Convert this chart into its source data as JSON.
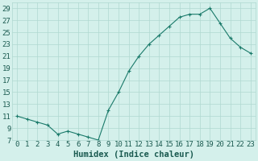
{
  "x": [
    0,
    1,
    2,
    3,
    4,
    5,
    6,
    7,
    8,
    9,
    10,
    11,
    12,
    13,
    14,
    15,
    16,
    17,
    18,
    19,
    20,
    21,
    22,
    23
  ],
  "y": [
    11.0,
    10.5,
    10.0,
    9.5,
    8.0,
    8.5,
    8.0,
    7.5,
    7.0,
    12.0,
    15.0,
    18.5,
    21.0,
    23.0,
    24.5,
    26.0,
    27.5,
    28.0,
    28.0,
    29.0,
    26.5,
    24.0,
    22.5,
    21.5
  ],
  "xlabel": "Humidex (Indice chaleur)",
  "line_color": "#1a7a6a",
  "marker": "+",
  "bg_color": "#d4f0eb",
  "grid_color": "#b0d8d0",
  "text_color": "#1a5a50",
  "xlim": [
    -0.5,
    23.5
  ],
  "ylim": [
    7,
    30
  ],
  "yticks": [
    7,
    9,
    11,
    13,
    15,
    17,
    19,
    21,
    23,
    25,
    27,
    29
  ],
  "fontsize": 6.5,
  "xlabel_fontsize": 7.5,
  "linewidth": 0.8,
  "markersize": 3.5,
  "markeredgewidth": 0.8
}
